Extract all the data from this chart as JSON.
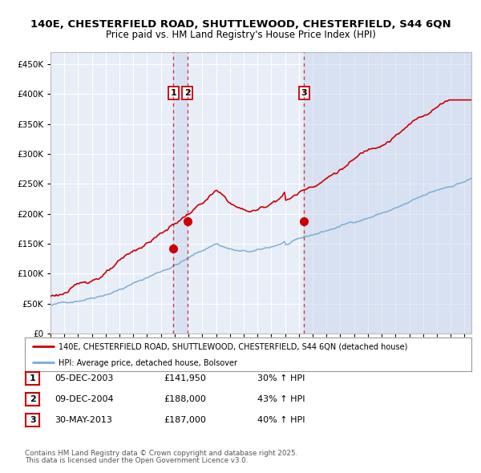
{
  "title_line1": "140E, CHESTERFIELD ROAD, SHUTTLEWOOD, CHESTERFIELD, S44 6QN",
  "title_line2": "Price paid vs. HM Land Registry's House Price Index (HPI)",
  "legend_red": "140E, CHESTERFIELD ROAD, SHUTTLEWOOD, CHESTERFIELD, S44 6QN (detached house)",
  "legend_blue": "HPI: Average price, detached house, Bolsover",
  "footer1": "Contains HM Land Registry data © Crown copyright and database right 2025.",
  "footer2": "This data is licensed under the Open Government Licence v3.0.",
  "sale1_date": "05-DEC-2003",
  "sale1_price": 141950,
  "sale1_hpi": "30% ↑ HPI",
  "sale2_date": "09-DEC-2004",
  "sale2_price": 188000,
  "sale2_hpi": "43% ↑ HPI",
  "sale3_date": "30-MAY-2013",
  "sale3_price": 187000,
  "sale3_hpi": "40% ↑ HPI",
  "ylim_max": 470000,
  "background_color": "#ffffff",
  "plot_bg": "#e8eef8",
  "shade_color": "#ccd8ee",
  "red_color": "#cc0000",
  "blue_color": "#7aaad0",
  "vline1": 2003.917,
  "vline2": 2004.917,
  "vline3": 2013.375,
  "xlim_min": 1995.0,
  "xlim_max": 2025.5
}
